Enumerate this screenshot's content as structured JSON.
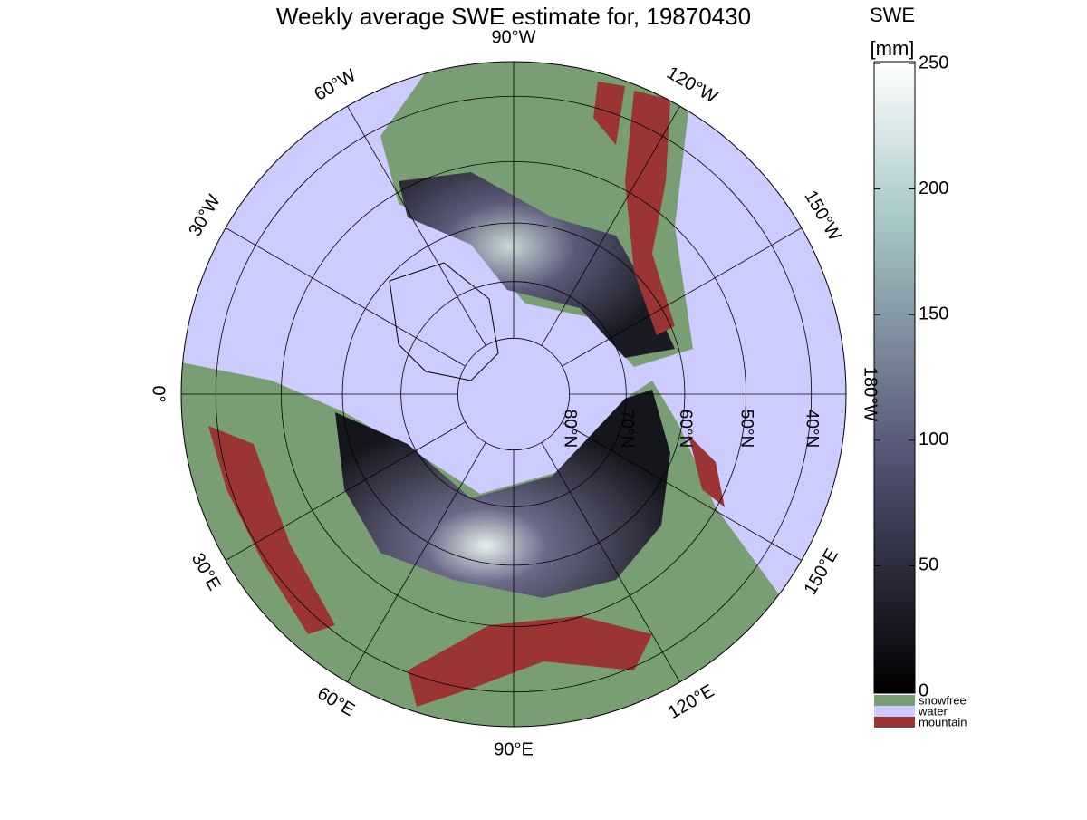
{
  "map": {
    "title": "Weekly average SWE estimate for, 19870430",
    "colorbar": {
      "label_line1": "SWE",
      "label_line2": "[mm]",
      "lim": [
        0,
        250
      ],
      "ticks": [
        0,
        50,
        100,
        150,
        200,
        250
      ]
    },
    "legend": [
      "snowfree",
      "water",
      "mountain"
    ],
    "legend_colors": [
      "#7a9e73",
      "#ccccff",
      "#9b3535"
    ],
    "meridians": [
      {
        "value": -90,
        "label": "90°W"
      },
      {
        "value": -120,
        "label": "120°W"
      },
      {
        "value": -150,
        "label": "150°W"
      },
      {
        "value": 180,
        "label": "180°W"
      },
      {
        "value": 150,
        "label": "150°E"
      },
      {
        "value": 120,
        "label": "120°E"
      },
      {
        "value": 90,
        "label": "90°E"
      },
      {
        "value": 60,
        "label": "60°E"
      },
      {
        "value": 30,
        "label": "30°E"
      },
      {
        "value": 0,
        "label": "0°"
      },
      {
        "value": -30,
        "label": "30°W"
      },
      {
        "value": -60,
        "label": "60°W"
      }
    ],
    "parallels": [
      {
        "value": 80,
        "label": "80°N"
      },
      {
        "value": 70,
        "label": "70°N"
      },
      {
        "value": 60,
        "label": "60°N"
      },
      {
        "value": 50,
        "label": "50°N"
      },
      {
        "value": 40,
        "label": "40°N"
      }
    ]
  }
}
